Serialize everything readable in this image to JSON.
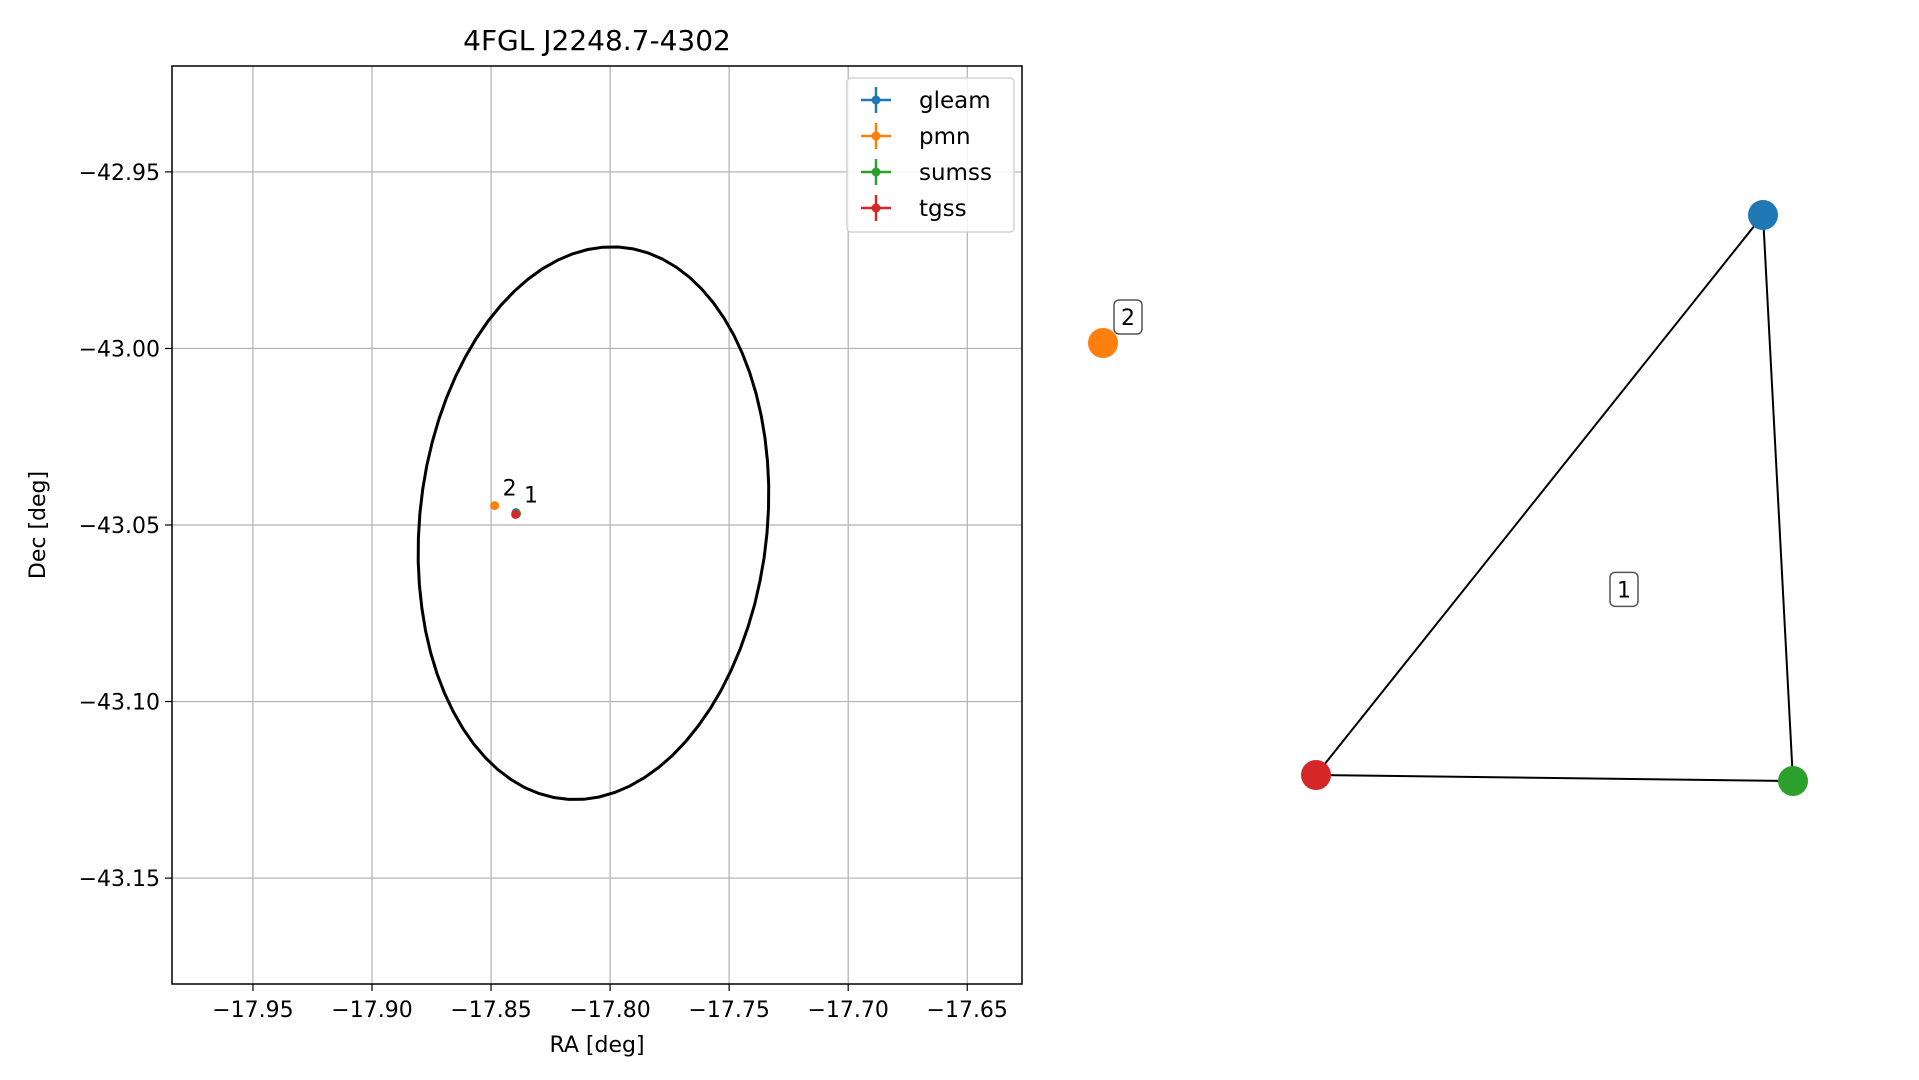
{
  "chart_data": [
    {
      "type": "scatter",
      "title": "4FGL J2248.7-4302",
      "xlabel": "RA [deg]",
      "ylabel": "Dec [deg]",
      "xlim": [
        -17.984,
        -17.627
      ],
      "ylim": [
        -43.18,
        -42.92
      ],
      "xticks": [
        -17.95,
        -17.9,
        -17.85,
        -17.8,
        -17.75,
        -17.7,
        -17.65
      ],
      "xtick_labels": [
        "−17.95",
        "−17.90",
        "−17.85",
        "−17.80",
        "−17.75",
        "−17.70",
        "−17.65"
      ],
      "yticks": [
        -42.95,
        -43.0,
        -43.05,
        -43.1,
        -43.15
      ],
      "ytick_labels": [
        "−42.95",
        "−43.00",
        "−43.05",
        "−43.10",
        "−43.15"
      ],
      "grid": true,
      "legend_position": "upper right",
      "series": [
        {
          "name": "gleam",
          "color": "#1f77b4",
          "points": [
            {
              "x": -17.8395,
              "y": -43.0465
            }
          ]
        },
        {
          "name": "pmn",
          "color": "#ff7f0e",
          "points": [
            {
              "x": -17.8485,
              "y": -43.0445
            }
          ]
        },
        {
          "name": "sumss",
          "color": "#2ca02c",
          "points": [
            {
              "x": -17.8393,
              "y": -43.0468
            }
          ]
        },
        {
          "name": "tgss",
          "color": "#d62728",
          "points": [
            {
              "x": -17.8397,
              "y": -43.047
            }
          ]
        }
      ],
      "annotations": [
        {
          "text": "1",
          "x": -17.8395,
          "y": -43.0465
        },
        {
          "text": "2",
          "x": -17.8485,
          "y": -43.0445
        }
      ],
      "ellipse": {
        "center": {
          "x": -17.807,
          "y": -43.0495
        },
        "semi_major": 0.0805,
        "semi_minor": 0.0712,
        "angle_deg": 60,
        "color": "#000000"
      }
    },
    {
      "type": "network",
      "nodes": [
        {
          "id": "gleam",
          "color": "#1f77b4"
        },
        {
          "id": "pmn",
          "color": "#ff7f0e"
        },
        {
          "id": "sumss",
          "color": "#2ca02c"
        },
        {
          "id": "tgss",
          "color": "#d62728"
        }
      ],
      "edges": [
        [
          "gleam",
          "sumss"
        ],
        [
          "gleam",
          "tgss"
        ],
        [
          "sumss",
          "tgss"
        ]
      ],
      "groups": [
        {
          "label": "1",
          "members": [
            "gleam",
            "sumss",
            "tgss"
          ]
        },
        {
          "label": "2",
          "members": [
            "pmn"
          ]
        }
      ]
    }
  ]
}
